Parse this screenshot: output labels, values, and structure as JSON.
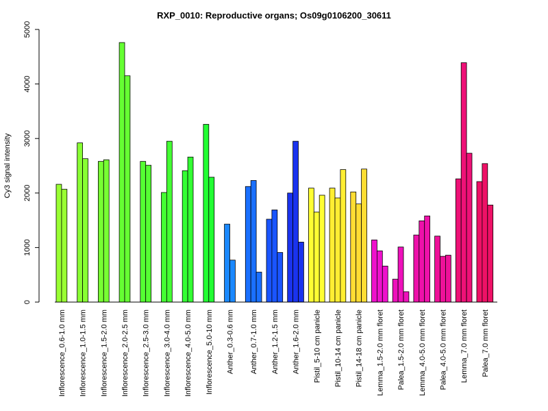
{
  "chart_data": {
    "type": "bar",
    "title": "RXP_0010: Reproductive organs; Os09g0106200_30611",
    "xlabel": "",
    "ylabel": "Cy3 signal intensity",
    "ylim": [
      0,
      5000
    ],
    "yticks": [
      0,
      1000,
      2000,
      3000,
      4000,
      5000
    ],
    "grid": false,
    "groups": [
      {
        "label": "Inflorescence_0.6-1.0 mm",
        "color": "#99ff33",
        "values": [
          2160,
          2070
        ]
      },
      {
        "label": "Inflorescence_1.0-1.5 mm",
        "color": "#88ff33",
        "values": [
          2920,
          2630
        ]
      },
      {
        "label": "Inflorescence_1.5-2.0 mm",
        "color": "#77ff33",
        "values": [
          2580,
          2610
        ]
      },
      {
        "label": "Inflorescence_2.0-2.5 mm",
        "color": "#66ff33",
        "values": [
          4760,
          4150
        ]
      },
      {
        "label": "Inflorescence_2.5-3.0 mm",
        "color": "#55ff33",
        "values": [
          2580,
          2510
        ]
      },
      {
        "label": "Inflorescence_3.0-4.0 mm",
        "color": "#44ff33",
        "values": [
          2010,
          2950
        ]
      },
      {
        "label": "Inflorescence_4.0-5.0 mm",
        "color": "#33ff33",
        "values": [
          2410,
          2660
        ]
      },
      {
        "label": "Inflorescence_5.0-10 mm",
        "color": "#22ff33",
        "values": [
          3260,
          2290
        ]
      },
      {
        "label": "Anther_0.3-0.6 mm",
        "color": "#1a88ff",
        "values": [
          1430,
          770
        ]
      },
      {
        "label": "Anther_0.7-1.0 mm",
        "color": "#1a70ff",
        "values": [
          2120,
          2230,
          550
        ]
      },
      {
        "label": "Anther_1.2-1.5 mm",
        "color": "#1a55ff",
        "values": [
          1520,
          1690,
          910
        ]
      },
      {
        "label": "Anther_1.6-2.0 mm",
        "color": "#1a33ee",
        "values": [
          2000,
          2950,
          1100
        ]
      },
      {
        "label": "Pistil_5-10 cm panicle",
        "color": "#ffff33",
        "values": [
          2090,
          1650,
          1960
        ]
      },
      {
        "label": "Pistil_10-14 cm panicle",
        "color": "#ffee33",
        "values": [
          2090,
          1910,
          2430
        ]
      },
      {
        "label": "Pistil_14-18 cm panicle",
        "color": "#ffdd33",
        "values": [
          2020,
          1800,
          2440
        ]
      },
      {
        "label": "Lemma_1.5-2.0 mm floret",
        "color": "#ee11cc",
        "values": [
          1140,
          940,
          660
        ]
      },
      {
        "label": "Palea_1.5-2.0 mm floret",
        "color": "#ee11bb",
        "values": [
          420,
          1010,
          190
        ]
      },
      {
        "label": "Lemma_4.0-5.0 mm floret",
        "color": "#ee11aa",
        "values": [
          1230,
          1490,
          1580
        ]
      },
      {
        "label": "Palea_4.0-5.0 mm floret",
        "color": "#ee1199",
        "values": [
          1210,
          840,
          860
        ]
      },
      {
        "label": "Lemma_7.0 mm floret",
        "color": "#ee1177",
        "values": [
          2260,
          4390,
          2730
        ]
      },
      {
        "label": "Palea_7.0 mm floret",
        "color": "#ee1166",
        "values": [
          2210,
          2540,
          1780
        ]
      }
    ]
  }
}
